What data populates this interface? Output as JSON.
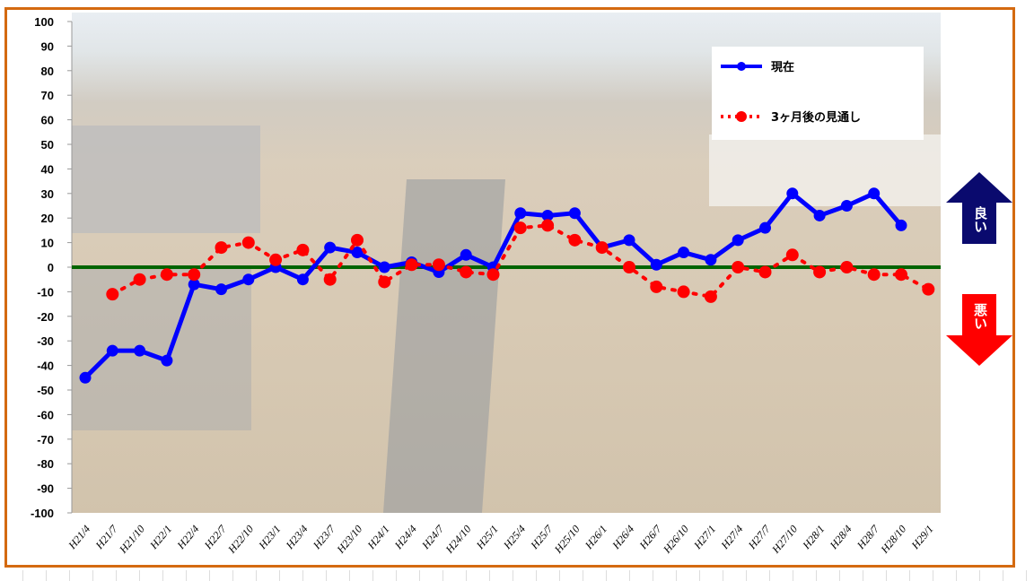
{
  "chart_data": {
    "type": "line",
    "title": "",
    "xlabel": "",
    "ylabel": "",
    "ylim": [
      -100,
      100
    ],
    "yticks": [
      100,
      90,
      80,
      70,
      60,
      50,
      40,
      30,
      20,
      10,
      0,
      -10,
      -20,
      -30,
      -40,
      -50,
      -60,
      -70,
      -80,
      -90,
      -100
    ],
    "grid": false,
    "legend_position": "top-right",
    "categories": [
      "H21/4",
      "H21/7",
      "H21/10",
      "H22/1",
      "H22/4",
      "H22/7",
      "H22/10",
      "H23/1",
      "H23/4",
      "H23/7",
      "H23/10",
      "H24/1",
      "H24/4",
      "H24/7",
      "H24/10",
      "H25/1",
      "H25/4",
      "H25/7",
      "H25/10",
      "H26/1",
      "H26/4",
      "H26/7",
      "H26/10",
      "H27/1",
      "H27/4",
      "H27/7",
      "H27/10",
      "H28/1",
      "H28/4",
      "H28/7",
      "H28/10",
      "H29/1"
    ],
    "series": [
      {
        "name": "現在",
        "color": "#0000ff",
        "style": "solid",
        "values": [
          -45,
          -34,
          -34,
          -38,
          -7,
          -9,
          -5,
          0,
          -5,
          8,
          6,
          0,
          2,
          -2,
          5,
          0,
          22,
          21,
          22,
          8,
          11,
          1,
          6,
          3,
          11,
          16,
          30,
          21,
          25,
          30,
          17,
          null
        ]
      },
      {
        "name": "3ヶ月後の見通し",
        "color": "#ff0000",
        "style": "dotted",
        "values": [
          null,
          -11,
          -5,
          -3,
          -3,
          8,
          10,
          3,
          7,
          -5,
          11,
          -6,
          1,
          1,
          -2,
          -3,
          16,
          17,
          11,
          8,
          0,
          -8,
          -10,
          -12,
          0,
          -2,
          5,
          -2,
          0,
          -3,
          -3,
          -9
        ]
      }
    ],
    "zero_line_color": "#006400",
    "annotations": {
      "good": "良い",
      "bad": "悪い"
    }
  }
}
